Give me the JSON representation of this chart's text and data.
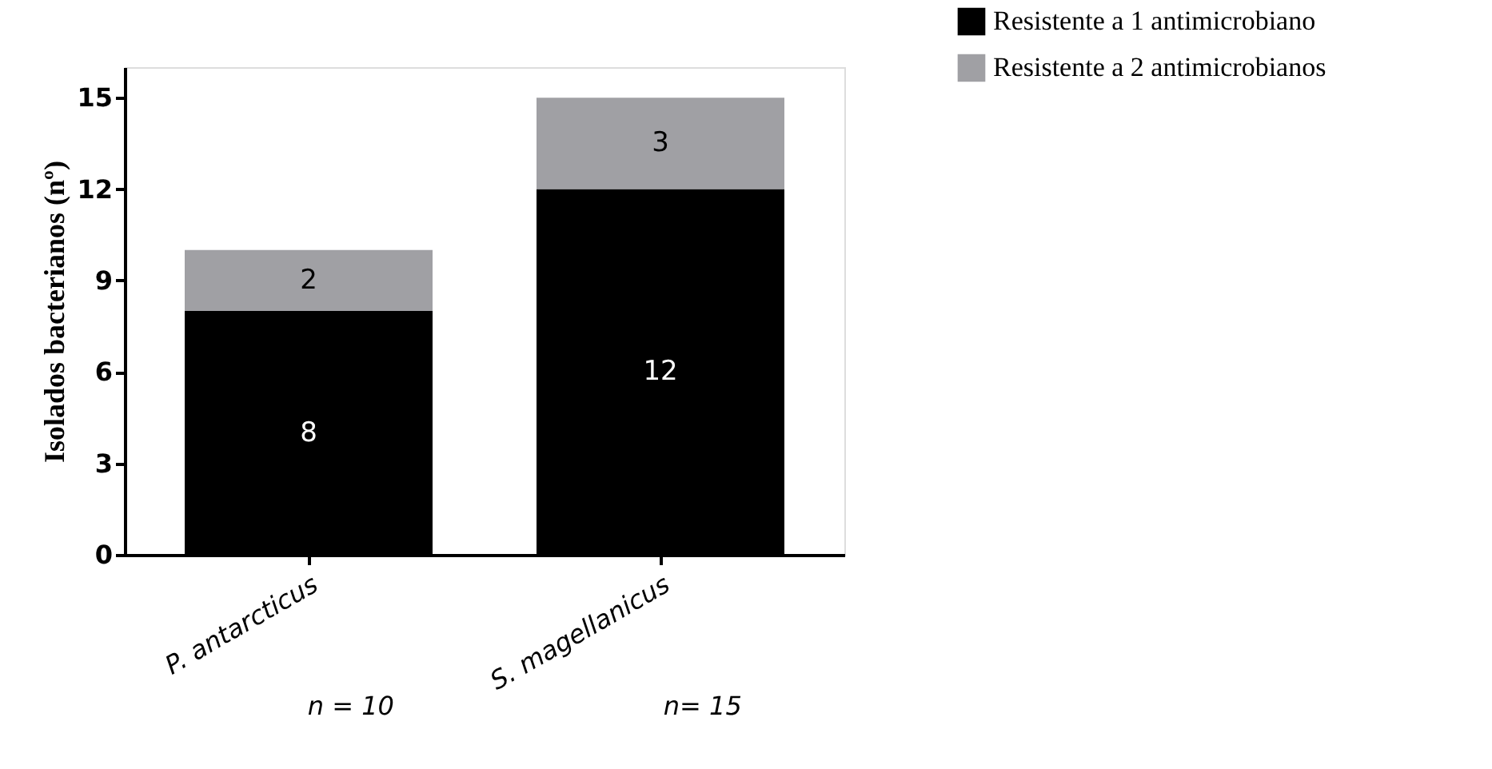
{
  "chart_data": {
    "type": "bar",
    "stacked": true,
    "ylabel": "Isolados bacterianos (nº)",
    "categories": [
      "P. antarcticus",
      "S. magellanicus"
    ],
    "series": [
      {
        "name": "Resistente a 1 antimicrobiano",
        "color": "#000000",
        "values": [
          8,
          12
        ]
      },
      {
        "name": "Resistente a 2 antimicrobianos",
        "color": "#a0a0a4",
        "values": [
          2,
          3
        ]
      }
    ],
    "data_labels": true,
    "ylim": [
      0,
      16
    ],
    "yticks": [
      0,
      3,
      6,
      9,
      12,
      15
    ],
    "grid": false,
    "legend": "top right",
    "annotations": [
      "n = 10",
      "n= 15"
    ]
  }
}
